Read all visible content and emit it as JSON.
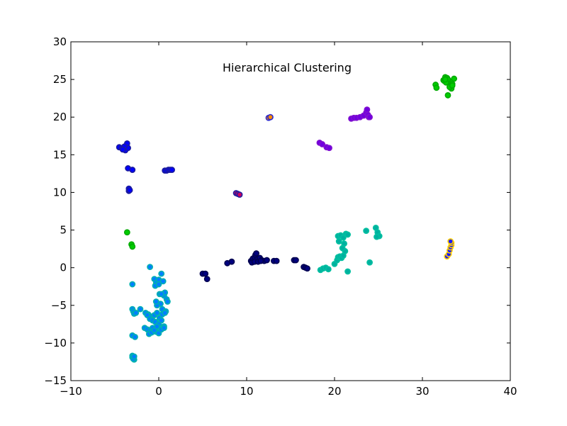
{
  "chart_data": {
    "type": "scatter",
    "title": "Hierarchical Clustering",
    "xlabel": "",
    "ylabel": "",
    "xlim": [
      -10,
      40
    ],
    "ylim": [
      -15,
      30
    ],
    "xticks": [
      -10,
      0,
      10,
      20,
      30,
      40
    ],
    "yticks": [
      -15,
      -10,
      -5,
      0,
      5,
      10,
      15,
      20,
      25,
      30
    ],
    "xtick_labels": [
      "−10",
      "0",
      "10",
      "20",
      "30",
      "40"
    ],
    "ytick_labels": [
      "−15",
      "−10",
      "−5",
      "0",
      "5",
      "10",
      "15",
      "20",
      "25",
      "30"
    ],
    "grid": false,
    "series": [
      {
        "fill": "#0000ff",
        "edge": "#1a1aa0",
        "x": [
          -4.5,
          -4.2,
          -4.0,
          -3.8,
          -3.7,
          -3.6,
          -3.5,
          -3.9,
          -4.1,
          -3.5,
          -3.4,
          -3.0,
          -3.4,
          -3.3,
          0.7,
          0.9,
          1.1,
          1.3,
          1.5
        ],
        "y": [
          16.0,
          15.9,
          15.8,
          15.6,
          16.2,
          16.5,
          15.9,
          16.1,
          15.7,
          13.2,
          10.5,
          13.0,
          10.2,
          10.3,
          12.9,
          12.9,
          13.0,
          13.0,
          13.0
        ]
      },
      {
        "fill": "#0080ff",
        "edge": "#00b0b0",
        "x": [
          -1.0,
          -0.5,
          -0.3,
          0.0,
          0.3,
          0.5,
          -0.4,
          0.1,
          0.6,
          0.9,
          1.0,
          0.7,
          0.2,
          -0.2,
          0.4,
          0.8,
          -1.5,
          -1.2,
          -0.8,
          -0.5,
          -0.2,
          0.1,
          0.4,
          0.7,
          -1.3,
          -1.0,
          -0.7,
          -0.4,
          0.0,
          0.3,
          0.6,
          -1.6,
          -1.3,
          -1.0,
          -0.7,
          -0.3,
          0.0,
          0.3,
          0.6,
          -1.1,
          -0.8,
          -0.5,
          -0.2,
          -3.0,
          -2.9,
          -2.8,
          -2.6,
          -3.0,
          -2.7,
          -3.0,
          -2.9,
          -2.8,
          -3.0,
          -2.9,
          -2.8,
          -2.1,
          0.3,
          -0.3,
          0.0
        ],
        "y": [
          0.1,
          -1.5,
          -2.0,
          -1.6,
          -0.8,
          -1.8,
          -2.4,
          -3.5,
          -3.7,
          -4.2,
          -4.5,
          -3.3,
          -4.8,
          -5.0,
          -5.5,
          -5.8,
          -6.0,
          -6.2,
          -6.5,
          -6.3,
          -6.0,
          -6.7,
          -6.2,
          -6.0,
          -6.3,
          -6.8,
          -7.0,
          -7.2,
          -7.5,
          -7.0,
          -7.8,
          -8.0,
          -8.2,
          -8.4,
          -8.0,
          -8.5,
          -8.7,
          -8.2,
          -8.0,
          -8.8,
          -8.6,
          -8.3,
          -7.8,
          -5.5,
          -5.8,
          -6.1,
          -6.0,
          -9.0,
          -9.2,
          -11.7,
          -12.0,
          -12.2,
          -11.9,
          -12.1,
          -11.8,
          -5.5,
          -3.5,
          -4.5,
          -2.2
        ],
        "extra": [
          [
            -3.0,
            -2.2
          ]
        ]
      },
      {
        "fill": "#000080",
        "edge": "#000050",
        "x": [
          5.0,
          5.3,
          5.5,
          7.8,
          8.3,
          10.5,
          10.7,
          10.9,
          11.0,
          11.1,
          11.2,
          11.4,
          11.5,
          11.7,
          12.0,
          12.3,
          10.6,
          10.9,
          11.3,
          11.6,
          13.1,
          13.4,
          15.4,
          15.6,
          16.5,
          16.7,
          16.9
        ],
        "y": [
          -0.8,
          -0.8,
          -1.5,
          0.6,
          0.8,
          0.9,
          1.2,
          1.4,
          1.7,
          1.9,
          1.1,
          0.9,
          1.3,
          1.0,
          0.9,
          1.0,
          0.7,
          0.8,
          0.8,
          0.9,
          0.9,
          0.9,
          1.0,
          1.0,
          0.1,
          0.0,
          -0.1
        ]
      },
      {
        "fill": "#00b0a0",
        "edge": "#00c0a0",
        "x": [
          18.4,
          18.7,
          19.0,
          19.3,
          20.0,
          20.3,
          20.4,
          20.6,
          20.8,
          21.0,
          21.2,
          20.5,
          21.1,
          20.9,
          21.5,
          20.4,
          20.7,
          21.0,
          21.3,
          21.5,
          23.6,
          24.0,
          24.7,
          24.9,
          25.1,
          24.8
        ],
        "y": [
          -0.3,
          -0.1,
          0.0,
          -0.2,
          0.5,
          1.0,
          1.4,
          1.5,
          1.3,
          1.6,
          2.2,
          3.5,
          3.2,
          2.6,
          -0.5,
          4.2,
          4.3,
          4.0,
          4.5,
          4.4,
          4.9,
          0.7,
          5.3,
          4.7,
          4.2,
          4.1
        ]
      },
      {
        "fill": "#00cc00",
        "edge": "#00aa00",
        "x": [
          -3.6,
          -3.1,
          -3.0,
          31.5,
          31.6,
          32.4,
          32.6,
          32.8,
          33.0,
          33.2,
          33.4,
          33.6,
          32.5,
          32.9,
          33.3,
          33.1,
          32.7,
          32.9,
          33.4,
          32.6
        ],
        "y": [
          4.7,
          3.1,
          2.8,
          24.3,
          23.9,
          24.9,
          25.3,
          25.2,
          24.6,
          24.7,
          24.4,
          25.1,
          24.8,
          25.0,
          23.8,
          24.0,
          24.6,
          22.9,
          24.2,
          25.0
        ]
      },
      {
        "fill": "#1a1aff",
        "edge": "#ffd000",
        "x": [
          32.8,
          33.0,
          33.1,
          33.2,
          33.3,
          33.3,
          33.2
        ],
        "y": [
          1.5,
          1.8,
          2.3,
          2.7,
          3.0,
          3.3,
          3.5
        ]
      },
      {
        "fill": "#7000e0",
        "edge": "#8010d0",
        "x": [
          18.3,
          18.6,
          19.1,
          19.4,
          21.9,
          22.2,
          22.5,
          22.9,
          23.3,
          23.6,
          23.7,
          23.8,
          23.9,
          24.0
        ],
        "y": [
          16.6,
          16.4,
          16.0,
          15.9,
          19.8,
          19.9,
          19.9,
          20.0,
          20.2,
          20.6,
          21.0,
          20.3,
          20.0,
          20.0
        ]
      },
      {
        "fill": "#cc0060",
        "edge": "#2020a0",
        "x": [
          8.8,
          9.0,
          9.2
        ],
        "y": [
          9.9,
          9.8,
          9.7
        ]
      },
      {
        "fill": "#ff8c00",
        "edge": "#2a2ad0",
        "x": [
          12.5,
          12.7
        ],
        "y": [
          19.9,
          20.0
        ]
      }
    ]
  }
}
